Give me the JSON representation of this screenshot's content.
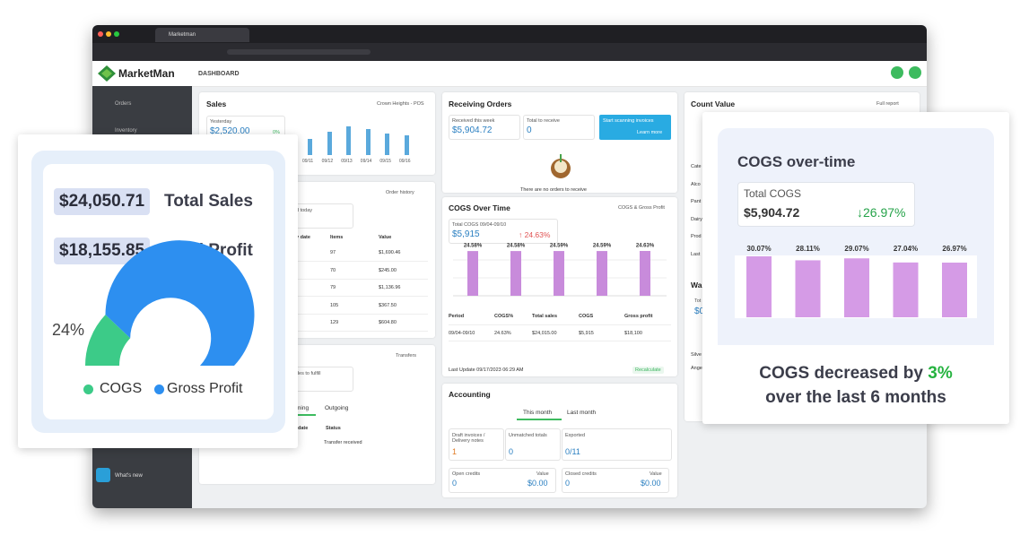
{
  "browser": {
    "tab_title": "Marketman"
  },
  "app": {
    "brand": "MarketMan",
    "page": "DASHBOARD"
  },
  "sidebar": {
    "items": [
      "Orders",
      "Inventory"
    ],
    "whats_new": "What's new"
  },
  "sales": {
    "title": "Sales",
    "location": "Crown Heights - POS",
    "period": "Yesterday",
    "amount": "$2,520.00",
    "change": "0%",
    "dates": [
      "09/11",
      "09/12",
      "09/13",
      "09/14",
      "09/15",
      "09/16"
    ]
  },
  "orders": {
    "link": "Order history",
    "summary": "d today",
    "columns": [
      "y date",
      "Items",
      "Value"
    ],
    "rows": [
      [
        "97",
        "$1,690.46"
      ],
      [
        "70",
        "$245.00"
      ],
      [
        "79",
        "$1,136.96"
      ],
      [
        "105",
        "$367.50"
      ],
      [
        "129",
        "$604.80"
      ]
    ]
  },
  "transfers": {
    "link": "Transfers",
    "summary": "des to fulfill",
    "tabs": [
      "ming",
      "Outgoing"
    ],
    "columns": [
      "date",
      "Status"
    ],
    "status": "Transfer received"
  },
  "receiving": {
    "title": "Receiving Orders",
    "week_label": "Received this week",
    "week_value": "$5,904.72",
    "to_receive_label": "Total to receive",
    "to_receive_value": "0",
    "promo": "Start scanning invoices",
    "promo_link": "Learn more",
    "empty": "There are no orders to receive"
  },
  "cogs": {
    "title": "COGS Over Time",
    "link": "COGS & Gross Profit",
    "total_label": "Total COGS 09/04-09/10",
    "total": "$5,915",
    "change": "↑ 24.63%",
    "bars": {
      "values": [
        24.58,
        24.58,
        24.59,
        24.59,
        24.63
      ],
      "value_labels": [
        "24.58%",
        "24.58%",
        "24.59%",
        "24.59%",
        "24.63%"
      ]
    },
    "columns": [
      "Period",
      "COGS%",
      "Total sales",
      "COGS",
      "Gross profit"
    ],
    "row": [
      "09/04-09/10",
      "24.63%",
      "$24,015.00",
      "$5,915",
      "$18,100"
    ],
    "last_update": "Last Update 09/17/2023 06:29 AM",
    "button": "Recalculate"
  },
  "accounting": {
    "title": "Accounting",
    "tabs": [
      "This month",
      "Last month"
    ],
    "tiles": [
      {
        "label": "Draft invoices / Delivery notes",
        "value": "1"
      },
      {
        "label": "Unmatched totals",
        "value": "0"
      },
      {
        "label": "Exported",
        "value": "0/11"
      }
    ],
    "credits": [
      {
        "label": "Open credits",
        "count": "0",
        "value_label": "Value",
        "value": "$0.00"
      },
      {
        "label": "Closed credits",
        "count": "0",
        "value_label": "Value",
        "value": "$0.00"
      }
    ]
  },
  "count": {
    "title": "Count Value",
    "link": "Full report",
    "rows": [
      "Cate",
      "Alco",
      "Pant",
      "Dairy",
      "Prod",
      "Last"
    ],
    "waste_title": "Wa",
    "waste_label": "Tot",
    "waste_value": "$0",
    "extra": [
      "Silve",
      "Ange"
    ]
  },
  "highlight": {
    "total_sales": "$24,050.71",
    "total_sales_label": "Total Sales",
    "total_profit": "$18,155.85",
    "total_profit_label": "Total Profit",
    "gauge": {
      "value": 24,
      "label": "24%"
    },
    "legend": [
      "COGS",
      "Gross Profit"
    ]
  },
  "cogs_card": {
    "title": "COGS over-time",
    "total_label": "Total COGS",
    "total": "$5,904.72",
    "change": "↓26.97%",
    "bars": {
      "values": [
        30.07,
        28.11,
        29.07,
        27.04,
        26.97
      ],
      "value_labels": [
        "30.07%",
        "28.11%",
        "29.07%",
        "27.04%",
        "26.97%"
      ]
    },
    "caption": [
      "COGS decreased by ",
      "3%",
      "over the last 6 months"
    ]
  }
}
